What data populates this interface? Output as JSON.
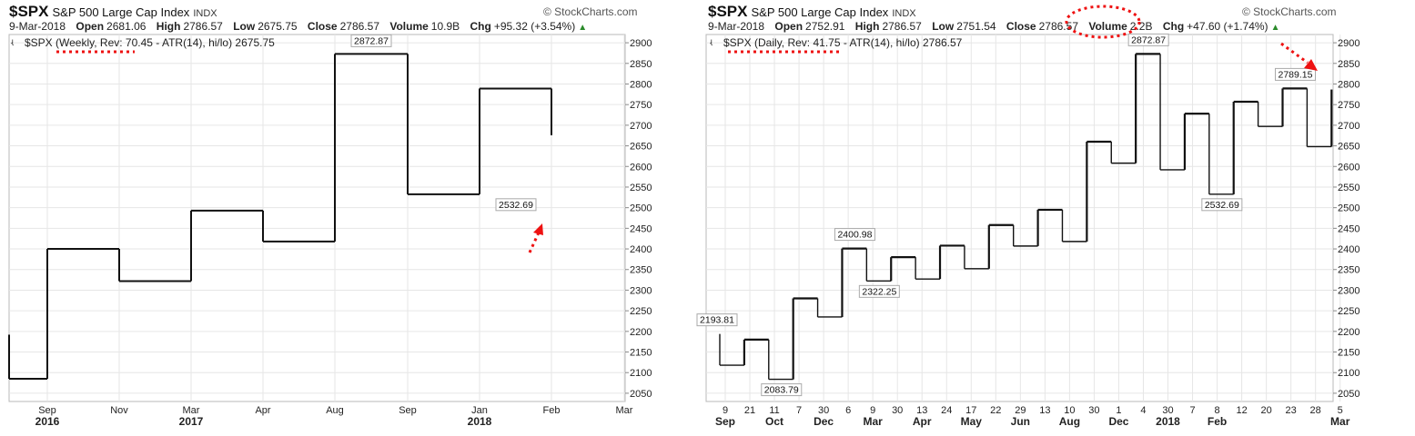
{
  "left": {
    "header": {
      "symbol": "$SPX",
      "name": "S&P 500 Large Cap Index",
      "exchange": "INDX",
      "source": "© StockCharts.com",
      "date": "9-Mar-2018",
      "open_label": "Open",
      "open": "2681.06",
      "high_label": "High",
      "high": "2786.57",
      "low_label": "Low",
      "low": "2675.75",
      "close_label": "Close",
      "close": "2786.57",
      "volume_label": "Volume",
      "volume": "10.9B",
      "chg_label": "Chg",
      "chg": "+95.32 (+3.54%)"
    },
    "legend": "$SPX (Weekly, Rev: 70.45 - ATR(14), hi/lo) 2675.75",
    "legend_icon": "kagi-icon",
    "arrow_color": "#ee1111"
  },
  "right": {
    "header": {
      "symbol": "$SPX",
      "name": "S&P 500 Large Cap Index",
      "exchange": "INDX",
      "source": "© StockCharts.com",
      "date": "9-Mar-2018",
      "open_label": "Open",
      "open": "2752.91",
      "high_label": "High",
      "high": "2786.57",
      "low_label": "Low",
      "low": "2751.54",
      "close_label": "Close",
      "close": "2786.57",
      "volume_label": "Volume",
      "volume": "2.2B",
      "chg_label": "Chg",
      "chg": "+47.60 (+1.74%)"
    },
    "legend": "$SPX (Daily, Rev: 41.75 - ATR(14), hi/lo) 2786.57",
    "legend_icon": "kagi-icon",
    "arrow_color": "#ee1111"
  },
  "chart_data": [
    {
      "type": "line",
      "subtype": "kagi",
      "ylim": [
        2030,
        2920
      ],
      "yticks": [
        2050,
        2100,
        2150,
        2200,
        2250,
        2300,
        2350,
        2400,
        2450,
        2500,
        2550,
        2600,
        2650,
        2700,
        2750,
        2800,
        2850,
        2900
      ],
      "x_tick_labels": [
        "Sep",
        "Nov",
        "Mar",
        "Apr",
        "Aug",
        "Sep",
        "Jan",
        "Feb",
        "Mar"
      ],
      "year_labels": [
        {
          "label": "2016",
          "at": "Sep"
        },
        {
          "label": "2017",
          "at": "Mar"
        },
        {
          "label": "2018",
          "at": "Jan"
        }
      ],
      "columns": [
        {
          "label": "Sep",
          "from": 2192,
          "to": 2085
        },
        {
          "label": "Nov",
          "from": 2085,
          "to": 2400
        },
        {
          "label": "Mar",
          "from": 2400,
          "to": 2322
        },
        {
          "label": "Apr",
          "from": 2322,
          "to": 2493
        },
        {
          "label": "Aug",
          "from": 2493,
          "to": 2418
        },
        {
          "label": "Sep",
          "from": 2418,
          "to": 2872.87
        },
        {
          "label": "Jan",
          "from": 2872.87,
          "to": 2532.69
        },
        {
          "label": "Feb",
          "from": 2532.69,
          "to": 2789
        },
        {
          "label": "Mar",
          "from": 2789,
          "to": 2675.75
        }
      ],
      "data_labels": [
        {
          "text": "2872.87",
          "value": 2872.87,
          "column": 5
        },
        {
          "text": "2532.69",
          "value": 2532.69,
          "column": 7
        }
      ],
      "grid": true
    },
    {
      "type": "line",
      "subtype": "kagi",
      "ylim": [
        2030,
        2920
      ],
      "yticks": [
        2050,
        2100,
        2150,
        2200,
        2250,
        2300,
        2350,
        2400,
        2450,
        2500,
        2550,
        2600,
        2650,
        2700,
        2750,
        2800,
        2850,
        2900
      ],
      "x_tick_labels": [
        "9",
        "21",
        "11",
        "7",
        "30",
        "6",
        "9",
        "30",
        "13",
        "24",
        "17",
        "22",
        "29",
        "13",
        "10",
        "30",
        "1",
        "4",
        "30",
        "7",
        "8",
        "12",
        "20",
        "23",
        "28",
        "5"
      ],
      "month_labels": [
        {
          "label": "Sep",
          "at": 0
        },
        {
          "label": "Oct",
          "at": 2
        },
        {
          "label": "Dec",
          "at": 4
        },
        {
          "label": "Mar",
          "at": 6
        },
        {
          "label": "Apr",
          "at": 8
        },
        {
          "label": "May",
          "at": 10
        },
        {
          "label": "Jun",
          "at": 12
        },
        {
          "label": "Aug",
          "at": 14
        },
        {
          "label": "Dec",
          "at": 16
        },
        {
          "label": "2018",
          "at": 18,
          "bold": true
        },
        {
          "label": "Feb",
          "at": 20
        },
        {
          "label": "Mar",
          "at": 25
        }
      ],
      "columns": [
        {
          "from": 2193.81,
          "to": 2118
        },
        {
          "from": 2118,
          "to": 2180
        },
        {
          "from": 2180,
          "to": 2083.79
        },
        {
          "from": 2083.79,
          "to": 2280
        },
        {
          "from": 2280,
          "to": 2235
        },
        {
          "from": 2235,
          "to": 2400.98
        },
        {
          "from": 2400.98,
          "to": 2322.25
        },
        {
          "from": 2322.25,
          "to": 2380
        },
        {
          "from": 2380,
          "to": 2327
        },
        {
          "from": 2327,
          "to": 2408
        },
        {
          "from": 2408,
          "to": 2352
        },
        {
          "from": 2352,
          "to": 2458
        },
        {
          "from": 2458,
          "to": 2407
        },
        {
          "from": 2407,
          "to": 2495
        },
        {
          "from": 2495,
          "to": 2418
        },
        {
          "from": 2418,
          "to": 2660
        },
        {
          "from": 2660,
          "to": 2608
        },
        {
          "from": 2608,
          "to": 2872.87
        },
        {
          "from": 2872.87,
          "to": 2592
        },
        {
          "from": 2592,
          "to": 2728
        },
        {
          "from": 2728,
          "to": 2532.69
        },
        {
          "from": 2532.69,
          "to": 2757
        },
        {
          "from": 2757,
          "to": 2697
        },
        {
          "from": 2697,
          "to": 2789.15
        },
        {
          "from": 2789.15,
          "to": 2648
        },
        {
          "from": 2648,
          "to": 2786.57
        }
      ],
      "data_labels": [
        {
          "text": "2193.81",
          "value": 2193.81,
          "column": 0
        },
        {
          "text": "2083.79",
          "value": 2083.79,
          "column": 2
        },
        {
          "text": "2400.98",
          "value": 2400.98,
          "column": 5
        },
        {
          "text": "2322.25",
          "value": 2322.25,
          "column": 6
        },
        {
          "text": "2872.87",
          "value": 2872.87,
          "column": 17
        },
        {
          "text": "2532.69",
          "value": 2532.69,
          "column": 20
        },
        {
          "text": "2789.15",
          "value": 2789.15,
          "column": 23
        }
      ],
      "grid": true
    }
  ]
}
